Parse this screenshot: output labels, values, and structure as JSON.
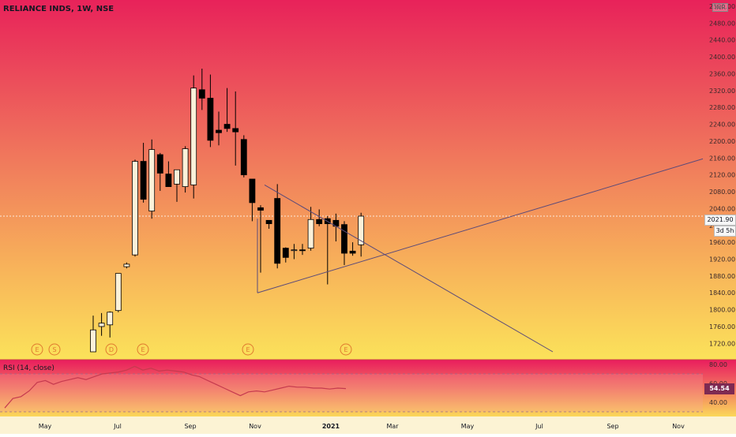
{
  "header": {
    "symbol": "RELIANCE INDS, 1W, NSE",
    "currency": "INR"
  },
  "chart_data": [
    {
      "type": "candlestick",
      "title": "RELIANCE INDS, 1W, NSE",
      "ylim": [
        1700,
        2520
      ],
      "y_ticks": [
        "2520.00",
        "2480.00",
        "2440.00",
        "2400.00",
        "2360.00",
        "2320.00",
        "2280.00",
        "2240.00",
        "2200.00",
        "2160.00",
        "2120.00",
        "2080.00",
        "2040.00",
        "2000.00",
        "1960.00",
        "1920.00",
        "1880.00",
        "1840.00",
        "1800.00",
        "1760.00",
        "1720.00"
      ],
      "x_ticks": [
        "May",
        "Jul",
        "Sep",
        "Nov",
        "2021",
        "Mar",
        "May",
        "Jul",
        "Sep",
        "Nov"
      ],
      "last_price": "2021.90",
      "countdown": "3d 5h",
      "candles": [
        {
          "o": 1700,
          "h": 1786,
          "l": 1700,
          "c": 1752
        },
        {
          "o": 1760,
          "h": 1792,
          "l": 1738,
          "c": 1768
        },
        {
          "o": 1764,
          "h": 1796,
          "l": 1734,
          "c": 1794
        },
        {
          "o": 1798,
          "h": 1886,
          "l": 1794,
          "c": 1886
        },
        {
          "o": 1902,
          "h": 1912,
          "l": 1898,
          "c": 1908
        },
        {
          "o": 1930,
          "h": 2156,
          "l": 1926,
          "c": 2152
        },
        {
          "o": 2152,
          "h": 2196,
          "l": 2054,
          "c": 2062
        },
        {
          "o": 2034,
          "h": 2204,
          "l": 2016,
          "c": 2180
        },
        {
          "o": 2168,
          "h": 2172,
          "l": 2082,
          "c": 2124
        },
        {
          "o": 2122,
          "h": 2152,
          "l": 2100,
          "c": 2092
        },
        {
          "o": 2098,
          "h": 2132,
          "l": 2056,
          "c": 2132
        },
        {
          "o": 2092,
          "h": 2188,
          "l": 2078,
          "c": 2182
        },
        {
          "o": 2096,
          "h": 2356,
          "l": 2064,
          "c": 2326
        },
        {
          "o": 2322,
          "h": 2372,
          "l": 2274,
          "c": 2302
        },
        {
          "o": 2302,
          "h": 2358,
          "l": 2186,
          "c": 2202
        },
        {
          "o": 2226,
          "h": 2270,
          "l": 2190,
          "c": 2220
        },
        {
          "o": 2240,
          "h": 2326,
          "l": 2222,
          "c": 2230
        },
        {
          "o": 2230,
          "h": 2318,
          "l": 2142,
          "c": 2222
        },
        {
          "o": 2204,
          "h": 2214,
          "l": 2114,
          "c": 2120
        },
        {
          "o": 2110,
          "h": 2108,
          "l": 2010,
          "c": 2054
        },
        {
          "o": 2042,
          "h": 2048,
          "l": 1888,
          "c": 2036
        },
        {
          "o": 2012,
          "h": 2012,
          "l": 1992,
          "c": 2004
        },
        {
          "o": 2064,
          "h": 2098,
          "l": 1898,
          "c": 1910
        },
        {
          "o": 1946,
          "h": 1948,
          "l": 1912,
          "c": 1924
        },
        {
          "o": 1942,
          "h": 1956,
          "l": 1920,
          "c": 1942
        },
        {
          "o": 1942,
          "h": 1956,
          "l": 1930,
          "c": 1940
        },
        {
          "o": 1946,
          "h": 2044,
          "l": 1940,
          "c": 2014
        },
        {
          "o": 2014,
          "h": 2038,
          "l": 1998,
          "c": 2004
        },
        {
          "o": 2016,
          "h": 2022,
          "l": 1860,
          "c": 2004
        },
        {
          "o": 2012,
          "h": 2028,
          "l": 1962,
          "c": 1998
        },
        {
          "o": 2002,
          "h": 2010,
          "l": 1906,
          "c": 1934
        },
        {
          "o": 1939,
          "h": 1960,
          "l": 1928,
          "c": 1934
        },
        {
          "o": 1954,
          "h": 2030,
          "l": 1926,
          "c": 2022
        }
      ],
      "earnings_markers": [
        "E",
        "S",
        "D",
        "E",
        "E",
        "E"
      ]
    },
    {
      "type": "line",
      "title": "RSI (14, close)",
      "ylim": [
        30,
        80
      ],
      "y_ticks": [
        "80.00",
        "60.00",
        "40.00"
      ],
      "last_value": "54.54",
      "values": [
        34,
        44,
        46,
        52,
        61,
        63,
        59,
        62,
        64,
        66,
        64,
        67,
        70,
        71,
        72,
        74,
        78,
        74,
        76,
        73,
        74,
        73,
        72,
        69,
        67,
        63,
        59,
        55,
        51,
        47,
        51,
        52,
        51,
        53,
        55,
        57,
        56,
        56,
        55,
        55,
        54,
        55,
        54.54
      ]
    }
  ],
  "colors": {
    "candle_up_body": "#fcf1d9",
    "candle_down_body": "#000000",
    "wick": "#000000",
    "trendline": "#5a4a7a",
    "rsi_line": "#c63a4f",
    "marker": "#e07a2f"
  }
}
